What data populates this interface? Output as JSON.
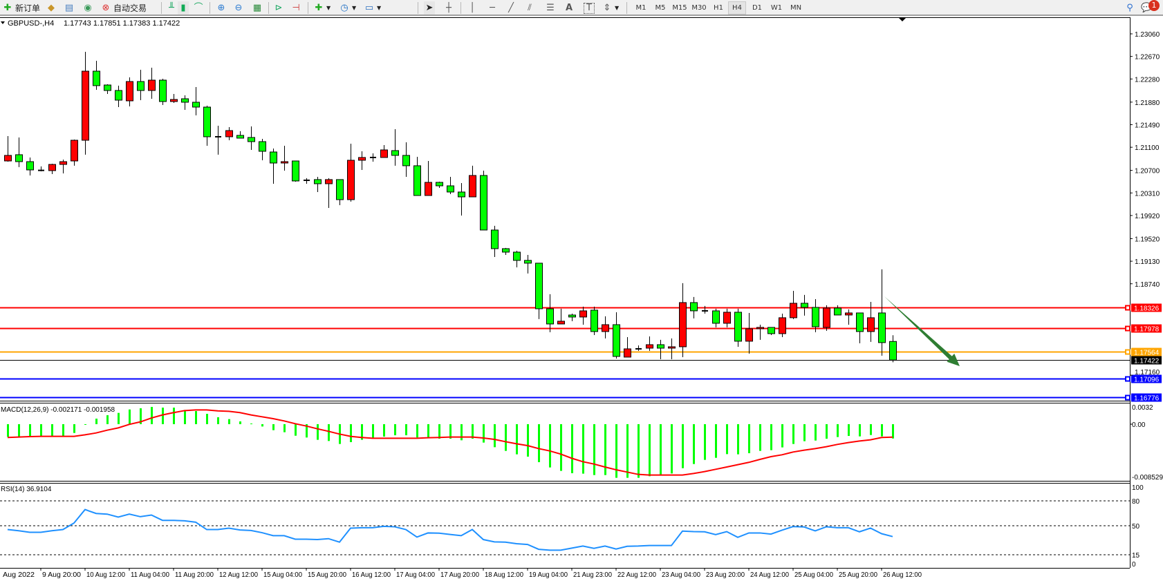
{
  "toolbar": {
    "new_order_label": "新订单",
    "auto_trading_label": "自动交易",
    "timeframes": [
      "M1",
      "M5",
      "M15",
      "M30",
      "H1",
      "H4",
      "D1",
      "W1",
      "MN"
    ],
    "active_timeframe": "H4",
    "notification_count": "1"
  },
  "chart": {
    "symbol": "GBPUSD-,H4",
    "ohlc_text": "1.17743 1.17851 1.17383 1.17422",
    "current_price_label": "1.17422",
    "price_ticks": [
      "1.23060",
      "1.22670",
      "1.22280",
      "1.21880",
      "1.21490",
      "1.21100",
      "1.20700",
      "1.20310",
      "1.19920",
      "1.19520",
      "1.19130",
      "1.18740",
      "1.17160"
    ],
    "horizontal_lines": [
      {
        "price": 1.18326,
        "label": "1.18326",
        "color": "#ff0000"
      },
      {
        "price": 1.17978,
        "label": "1.17978",
        "color": "#ff0000"
      },
      {
        "price": 1.17564,
        "label": "1.17564",
        "color": "#ffa500"
      },
      {
        "price": 1.17096,
        "label": "1.17096",
        "color": "#0000ff"
      },
      {
        "price": 1.16776,
        "label": "1.16776",
        "color": "#0000ff"
      }
    ],
    "arrow": {
      "from": {
        "bar": 79.25,
        "price": 1.18522
      },
      "to": {
        "bar": 86.06,
        "price": 1.17316
      },
      "color": "#2e7d32"
    },
    "time_labels": [
      {
        "bar": -1,
        "label": "Aug 2022"
      },
      {
        "bar": 3,
        "label": "9 Aug 20:00"
      },
      {
        "bar": 7,
        "label": "10 Aug 12:00"
      },
      {
        "bar": 11,
        "label": "11 Aug 04:00"
      },
      {
        "bar": 15,
        "label": "11 Aug 20:00"
      },
      {
        "bar": 19,
        "label": "12 Aug 12:00"
      },
      {
        "bar": 23,
        "label": "15 Aug 04:00"
      },
      {
        "bar": 27,
        "label": "15 Aug 20:00"
      },
      {
        "bar": 31,
        "label": "16 Aug 12:00"
      },
      {
        "bar": 35,
        "label": "17 Aug 04:00"
      },
      {
        "bar": 39,
        "label": "17 Aug 20:00"
      },
      {
        "bar": 43,
        "label": "18 Aug 12:00"
      },
      {
        "bar": 47,
        "label": "19 Aug 04:00"
      },
      {
        "bar": 51,
        "label": "21 Aug 23:00"
      },
      {
        "bar": 55,
        "label": "22 Aug 12:00"
      },
      {
        "bar": 59,
        "label": "23 Aug 04:00"
      },
      {
        "bar": 63,
        "label": "23 Aug 20:00"
      },
      {
        "bar": 67,
        "label": "24 Aug 12:00"
      },
      {
        "bar": 71,
        "label": "25 Aug 04:00"
      },
      {
        "bar": 75,
        "label": "25 Aug 20:00"
      },
      {
        "bar": 79,
        "label": "26 Aug 12:00"
      }
    ],
    "bull_color": "#ff0000",
    "bear_color": "#00ff00"
  },
  "macd": {
    "title": "MACD(12,26,9) -0.002171 -0.001958",
    "axis_labels": [
      "0.0032",
      "0.00",
      "-0.008529"
    ],
    "hist_color": "#00ff00",
    "signal_color": "#ff0000"
  },
  "rsi": {
    "title": "RSI(14) 36.9104",
    "axis_labels": [
      "100",
      "80",
      "50",
      "15",
      "0"
    ],
    "levels": [
      80,
      50,
      15
    ],
    "color": "#1e90ff"
  },
  "chart_data": {
    "type": "candlestick",
    "title": "GBPUSD-,H4",
    "ylim": [
      1.1674,
      1.237
    ],
    "candles_ohlc": [
      [
        1.20863,
        1.21293,
        1.20851,
        1.20959
      ],
      [
        1.20971,
        1.21269,
        1.20756,
        1.20851
      ],
      [
        1.20851,
        1.20923,
        1.20612,
        1.20708
      ],
      [
        1.20696,
        1.20768,
        1.20684,
        1.207
      ],
      [
        1.20696,
        1.20815,
        1.20636,
        1.20803
      ],
      [
        1.20803,
        1.20887,
        1.20648,
        1.20851
      ],
      [
        1.20863,
        1.21233,
        1.2078,
        1.21221
      ],
      [
        1.21221,
        1.2275,
        1.20971,
        1.22415
      ],
      [
        1.22415,
        1.22594,
        1.22093,
        1.22165
      ],
      [
        1.22176,
        1.22188,
        1.22021,
        1.22081
      ],
      [
        1.22081,
        1.22165,
        1.21794,
        1.21914
      ],
      [
        1.21902,
        1.22308,
        1.21806,
        1.22236
      ],
      [
        1.22236,
        1.22439,
        1.21914,
        1.22081
      ],
      [
        1.22081,
        1.22475,
        1.21938,
        1.2226
      ],
      [
        1.2226,
        1.22284,
        1.2183,
        1.2189
      ],
      [
        1.2189,
        1.22021,
        1.21866,
        1.21926
      ],
      [
        1.21938,
        1.21997,
        1.21747,
        1.21878
      ],
      [
        1.21878,
        1.22141,
        1.21651,
        1.21794
      ],
      [
        1.21794,
        1.21818,
        1.21126,
        1.21281
      ],
      [
        1.21281,
        1.21472,
        1.20971,
        1.21281
      ],
      [
        1.21281,
        1.21448,
        1.21221,
        1.21388
      ],
      [
        1.21305,
        1.21377,
        1.21257,
        1.21257
      ],
      [
        1.21269,
        1.2146,
        1.21054,
        1.21197
      ],
      [
        1.21197,
        1.21245,
        1.20875,
        1.2103
      ],
      [
        1.21018,
        1.21078,
        1.20469,
        1.20827
      ],
      [
        1.20827,
        1.21126,
        1.20696,
        1.20851
      ],
      [
        1.20863,
        1.20863,
        1.20505,
        1.20517
      ],
      [
        1.20529,
        1.20565,
        1.20469,
        1.20529
      ],
      [
        1.20541,
        1.20588,
        1.20326,
        1.20469
      ],
      [
        1.20469,
        1.20565,
        1.20051,
        1.20541
      ],
      [
        1.20541,
        1.20541,
        1.20099,
        1.20194
      ],
      [
        1.20194,
        1.21162,
        1.20159,
        1.20875
      ],
      [
        1.20875,
        1.2103,
        1.20708,
        1.20923
      ],
      [
        1.20923,
        1.20994,
        1.20851,
        1.20923
      ],
      [
        1.20923,
        1.21138,
        1.20923,
        1.21054
      ],
      [
        1.21042,
        1.21412,
        1.2078,
        1.20959
      ],
      [
        1.20959,
        1.21185,
        1.20588,
        1.2078
      ],
      [
        1.2078,
        1.20935,
        1.20266,
        1.20266
      ],
      [
        1.20266,
        1.20863,
        1.20266,
        1.20493
      ],
      [
        1.20493,
        1.20505,
        1.20397,
        1.20433
      ],
      [
        1.20433,
        1.20588,
        1.2029,
        1.20326
      ],
      [
        1.20326,
        1.20481,
        1.1992,
        1.20242
      ],
      [
        1.20242,
        1.2078,
        1.20242,
        1.20612
      ],
      [
        1.20612,
        1.20696,
        1.19669,
        1.19669
      ],
      [
        1.19669,
        1.19741,
        1.19203,
        1.19347
      ],
      [
        1.19347,
        1.19359,
        1.19239,
        1.19287
      ],
      [
        1.19287,
        1.19311,
        1.19024,
        1.19144
      ],
      [
        1.19144,
        1.19239,
        1.18917,
        1.19096
      ],
      [
        1.19096,
        1.19096,
        1.18129,
        1.18308
      ],
      [
        1.18308,
        1.18559,
        1.17902,
        1.18045
      ],
      [
        1.18045,
        1.18308,
        1.18045,
        1.18093
      ],
      [
        1.182,
        1.18224,
        1.18093,
        1.18165
      ],
      [
        1.18165,
        1.18344,
        1.18033,
        1.18272
      ],
      [
        1.18284,
        1.18344,
        1.17854,
        1.17914
      ],
      [
        1.17914,
        1.18177,
        1.17795,
        1.18033
      ],
      [
        1.18033,
        1.18248,
        1.17448,
        1.17484
      ],
      [
        1.17472,
        1.17818,
        1.17472,
        1.17615
      ],
      [
        1.17615,
        1.17675,
        1.1758,
        1.17615
      ],
      [
        1.17627,
        1.1783,
        1.1758,
        1.17687
      ],
      [
        1.17687,
        1.17771,
        1.17436,
        1.17627
      ],
      [
        1.17627,
        1.17795,
        1.17436,
        1.17651
      ],
      [
        1.17651,
        1.1875,
        1.17472,
        1.18415
      ],
      [
        1.18415,
        1.18511,
        1.18141,
        1.18272
      ],
      [
        1.18272,
        1.18356,
        1.18224,
        1.18272
      ],
      [
        1.18272,
        1.18308,
        1.17986,
        1.18057
      ],
      [
        1.18057,
        1.18308,
        1.17986,
        1.18248
      ],
      [
        1.18248,
        1.18308,
        1.17651,
        1.17747
      ],
      [
        1.17747,
        1.18236,
        1.17532,
        1.17962
      ],
      [
        1.17962,
        1.18033,
        1.17771,
        1.17986
      ],
      [
        1.17986,
        1.17986,
        1.17854,
        1.17878
      ],
      [
        1.17878,
        1.18224,
        1.17818,
        1.18153
      ],
      [
        1.18153,
        1.18618,
        1.18129,
        1.18403
      ],
      [
        1.18403,
        1.18547,
        1.18189,
        1.18332
      ],
      [
        1.18332,
        1.18475,
        1.17902,
        1.17997
      ],
      [
        1.17986,
        1.18368,
        1.17926,
        1.1832
      ],
      [
        1.1832,
        1.18368,
        1.182,
        1.182
      ],
      [
        1.182,
        1.18296,
        1.18033,
        1.18236
      ],
      [
        1.18236,
        1.18236,
        1.17711,
        1.17914
      ],
      [
        1.17914,
        1.18427,
        1.17735,
        1.18153
      ],
      [
        1.18236,
        1.18989,
        1.17496,
        1.17723
      ],
      [
        1.17743,
        1.17851,
        1.17383,
        1.17422
      ]
    ],
    "macd_hist": [
      -0.00192,
      -0.00192,
      -0.00192,
      -0.00192,
      -0.00192,
      -0.00185,
      -0.00133,
      -7e-05,
      0.00084,
      0.00136,
      0.00171,
      0.00223,
      0.00241,
      0.00262,
      0.00251,
      0.00251,
      0.00216,
      0.00199,
      0.00157,
      0.00105,
      0.00077,
      0.00042,
      0.0001,
      -0.00035,
      -0.00091,
      -0.00122,
      -0.00175,
      -0.00202,
      -0.00237,
      -0.00255,
      -0.003,
      -0.00272,
      -0.00237,
      -0.00209,
      -0.00188,
      -0.00168,
      -0.00168,
      -0.00202,
      -0.00202,
      -0.0022,
      -0.0022,
      -0.00244,
      -0.0022,
      -0.00279,
      -0.00349,
      -0.00405,
      -0.00457,
      -0.00492,
      -0.00576,
      -0.00656,
      -0.00708,
      -0.00743,
      -0.0075,
      -0.00771,
      -0.00771,
      -0.00813,
      -0.00813,
      -0.00813,
      -0.00789,
      -0.00768,
      -0.00747,
      -0.00667,
      -0.00604,
      -0.00541,
      -0.0051,
      -0.00454,
      -0.00457,
      -0.0044,
      -0.00405,
      -0.00394,
      -0.00352,
      -0.003,
      -0.00258,
      -0.00248,
      -0.0022,
      -0.00195,
      -0.00178,
      -0.00185,
      -0.00164,
      -0.00185,
      -0.002171
    ],
    "macd_signal": [
      -0.00202,
      -0.00195,
      -0.00188,
      -0.00185,
      -0.00185,
      -0.00185,
      -0.00185,
      -0.00161,
      -0.00133,
      -0.00091,
      -0.00056,
      -3e-05,
      0.00035,
      0.00094,
      0.0014,
      0.00175,
      0.00206,
      0.00216,
      0.00216,
      0.00202,
      0.00195,
      0.00175,
      0.0014,
      0.00112,
      0.00084,
      0.00049,
      7e-05,
      -0.00028,
      -0.0007,
      -0.00108,
      -0.0015,
      -0.00185,
      -0.00202,
      -0.00213,
      -0.00213,
      -0.00213,
      -0.00213,
      -0.00213,
      -0.00206,
      -0.00202,
      -0.00195,
      -0.00195,
      -0.00195,
      -0.00209,
      -0.0023,
      -0.00265,
      -0.00297,
      -0.00325,
      -0.0037,
      -0.00405,
      -0.00454,
      -0.00517,
      -0.00569,
      -0.00604,
      -0.00649,
      -0.00691,
      -0.00726,
      -0.00761,
      -0.00771,
      -0.00771,
      -0.00771,
      -0.00771,
      -0.00747,
      -0.00719,
      -0.00684,
      -0.00649,
      -0.00614,
      -0.00579,
      -0.00534,
      -0.00492,
      -0.00464,
      -0.00422,
      -0.00394,
      -0.0037,
      -0.00342,
      -0.00307,
      -0.00279,
      -0.00255,
      -0.00237,
      -0.00202,
      -0.001958
    ],
    "macd_ylim": [
      -0.008529,
      0.0032
    ],
    "rsi": [
      45.4,
      44.0,
      42.1,
      42.1,
      44.0,
      45.4,
      53.2,
      69.5,
      64.8,
      64.0,
      60.4,
      64.0,
      60.9,
      62.9,
      56.5,
      56.5,
      55.9,
      54.3,
      45.4,
      45.4,
      47.1,
      44.9,
      44.3,
      41.6,
      38.0,
      38.0,
      33.8,
      33.8,
      33.3,
      34.4,
      30.2,
      47.1,
      47.6,
      47.6,
      49.3,
      48.7,
      45.4,
      36.3,
      41.3,
      41.0,
      39.5,
      38.0,
      45.4,
      33.3,
      30.5,
      30.2,
      28.3,
      27.4,
      21.6,
      20.5,
      20.5,
      23.0,
      25.5,
      22.7,
      25.5,
      21.9,
      25.2,
      25.5,
      26.1,
      26.1,
      26.1,
      43.5,
      42.9,
      42.7,
      39.3,
      42.9,
      36.0,
      41.3,
      41.3,
      39.9,
      44.6,
      49.0,
      48.5,
      43.8,
      48.7,
      47.6,
      47.6,
      42.7,
      47.1,
      40.4,
      36.91
    ],
    "rsi_ylim": [
      0,
      100
    ]
  }
}
